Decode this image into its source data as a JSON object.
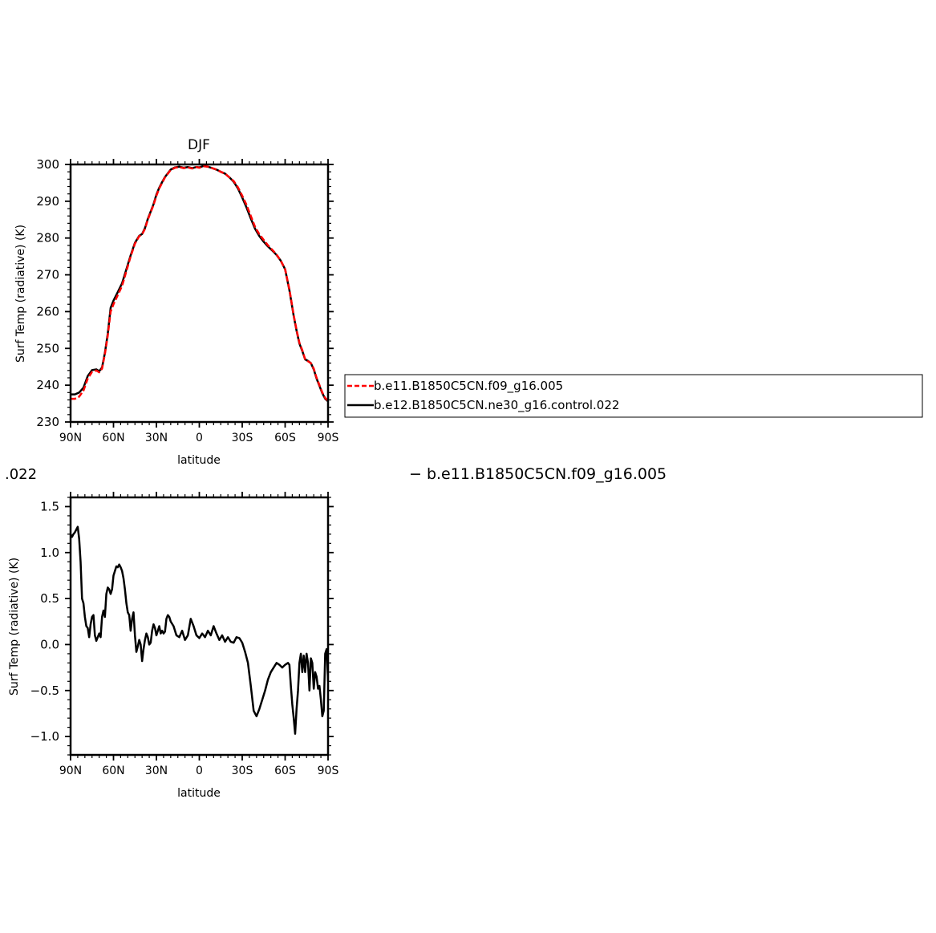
{
  "diff_fragment": ".022",
  "diff_subtitle": "− b.e11.B1850C5CN.f09_g16.005",
  "chart_data": [
    {
      "type": "line",
      "title": "DJF",
      "xlabel": "latitude",
      "ylabel": "Surf Temp (radiative) (K)",
      "xlim": [
        90,
        -90
      ],
      "ylim": [
        230,
        300
      ],
      "xtick_values": [
        90,
        60,
        30,
        0,
        -30,
        -60,
        -90
      ],
      "xtick_labels": [
        "90N",
        "60N",
        "30N",
        "0",
        "30S",
        "60S",
        "90S"
      ],
      "ytick_values": [
        230,
        240,
        250,
        260,
        270,
        280,
        290,
        300
      ],
      "ytick_labels": [
        "230",
        "240",
        "250",
        "260",
        "270",
        "280",
        "290",
        "300"
      ],
      "legend_position": "right",
      "series": [
        {
          "name": "b.e11.B1850C5CN.f09_g16.005",
          "color": "#ff0000",
          "dash": "dashed",
          "x": [
            90,
            87,
            84,
            81,
            78,
            75,
            72,
            70,
            68,
            66,
            64,
            62,
            60,
            57,
            54,
            51,
            48,
            45,
            42,
            40,
            38,
            36,
            34,
            32,
            30,
            28,
            26,
            24,
            22,
            20,
            17,
            14,
            11,
            8,
            5,
            2,
            0,
            -3,
            -6,
            -9,
            -12,
            -15,
            -18,
            -21,
            -24,
            -27,
            -30,
            -33,
            -36,
            -39,
            -42,
            -45,
            -48,
            -51,
            -54,
            -57,
            -60,
            -63,
            -66,
            -68,
            -70,
            -72,
            -74,
            -76,
            -78,
            -80,
            -82,
            -84,
            -86,
            -88,
            -90
          ],
          "y": [
            236.3,
            236.3,
            236.9,
            238.5,
            241.8,
            243.6,
            244.0,
            243.5,
            244.5,
            248.5,
            253.5,
            260.0,
            262.0,
            264.5,
            267.0,
            271.0,
            275.0,
            278.5,
            280.5,
            281.0,
            282.5,
            285.0,
            287.0,
            289.0,
            291.5,
            293.5,
            295.0,
            296.5,
            297.5,
            298.5,
            299.1,
            299.3,
            299.0,
            299.2,
            298.9,
            299.3,
            299.1,
            299.5,
            299.4,
            299.0,
            298.6,
            298.0,
            297.5,
            296.5,
            295.5,
            293.8,
            291.5,
            289.0,
            286.0,
            283.0,
            281.0,
            279.5,
            278.0,
            276.8,
            275.5,
            273.8,
            271.5,
            266.0,
            259.0,
            255.0,
            251.5,
            249.5,
            247.0,
            246.5,
            246.0,
            244.5,
            242.0,
            240.0,
            238.0,
            236.5,
            235.8
          ]
        },
        {
          "name": "b.e12.B1850C5CN.ne30_g16.control.022",
          "color": "#000000",
          "dash": "solid",
          "x": [
            90,
            87,
            84,
            81,
            78,
            75,
            72,
            70,
            68,
            66,
            64,
            62,
            60,
            57,
            54,
            51,
            48,
            45,
            42,
            40,
            38,
            36,
            34,
            32,
            30,
            28,
            26,
            24,
            22,
            20,
            17,
            14,
            11,
            8,
            5,
            2,
            0,
            -3,
            -6,
            -9,
            -12,
            -15,
            -18,
            -21,
            -24,
            -27,
            -30,
            -33,
            -36,
            -39,
            -42,
            -45,
            -48,
            -51,
            -54,
            -57,
            -60,
            -63,
            -66,
            -68,
            -70,
            -72,
            -74,
            -76,
            -78,
            -80,
            -82,
            -84,
            -86,
            -88,
            -90
          ],
          "y": [
            237.5,
            237.5,
            238.0,
            239.3,
            242.5,
            244.1,
            244.3,
            243.8,
            244.8,
            248.8,
            254.0,
            261.0,
            263.0,
            265.3,
            267.7,
            271.5,
            275.3,
            278.7,
            280.6,
            281.1,
            282.7,
            285.2,
            287.2,
            289.2,
            291.8,
            293.7,
            295.2,
            296.6,
            297.6,
            298.6,
            299.2,
            299.4,
            299.1,
            299.3,
            299.0,
            299.3,
            299.2,
            299.6,
            299.4,
            299.0,
            298.6,
            298.0,
            297.5,
            296.5,
            295.3,
            293.5,
            291.0,
            288.3,
            285.3,
            282.5,
            280.5,
            279.0,
            277.7,
            276.6,
            275.4,
            273.8,
            271.5,
            265.8,
            258.8,
            254.8,
            251.3,
            249.3,
            247.0,
            246.6,
            246.0,
            244.3,
            241.8,
            239.8,
            237.8,
            236.3,
            235.6
          ]
        }
      ]
    },
    {
      "type": "line",
      "title": "",
      "xlabel": "latitude",
      "ylabel": "Surf Temp (radiative) (K)",
      "xlim": [
        90,
        -90
      ],
      "ylim": [
        -1.2,
        1.6
      ],
      "xtick_values": [
        90,
        60,
        30,
        0,
        -30,
        -60,
        -90
      ],
      "xtick_labels": [
        "90N",
        "60N",
        "30N",
        "0",
        "30S",
        "60S",
        "90S"
      ],
      "ytick_values": [
        1.5,
        1.0,
        0.5,
        0.0,
        -0.5,
        -1.0
      ],
      "ytick_labels": [
        "1.5",
        "1.0",
        "0.5",
        "0.0",
        "−0.5",
        "−1.0"
      ],
      "series": [
        {
          "color": "#000000",
          "dash": "solid",
          "x": [
            90,
            89,
            88,
            87,
            86,
            85,
            84,
            83,
            82,
            81,
            80,
            79,
            78,
            77,
            76,
            75,
            74,
            73,
            72,
            71,
            70,
            69,
            68,
            67,
            66,
            65,
            64,
            63,
            62,
            61,
            60,
            59,
            58,
            57,
            56,
            55,
            54,
            53,
            52,
            51,
            50,
            49,
            48,
            47,
            46,
            45,
            44,
            43,
            42,
            41,
            40,
            39,
            38,
            37,
            36,
            35,
            34,
            33,
            32,
            31,
            30,
            29,
            28,
            27,
            26,
            25,
            24,
            23,
            22,
            21,
            20,
            18,
            16,
            14,
            12,
            10,
            8,
            6,
            4,
            2,
            0,
            -2,
            -4,
            -6,
            -8,
            -10,
            -12,
            -14,
            -16,
            -18,
            -20,
            -22,
            -24,
            -26,
            -28,
            -30,
            -32,
            -34,
            -36,
            -38,
            -40,
            -42,
            -44,
            -46,
            -48,
            -50,
            -52,
            -54,
            -56,
            -58,
            -60,
            -62,
            -63,
            -64,
            -65,
            -66,
            -67,
            -68,
            -69,
            -70,
            -71,
            -72,
            -73,
            -74,
            -75,
            -76,
            -77,
            -78,
            -79,
            -80,
            -81,
            -82,
            -83,
            -84,
            -85,
            -86,
            -87,
            -88,
            -89,
            -90
          ],
          "y": [
            1.2,
            1.17,
            1.2,
            1.22,
            1.25,
            1.28,
            1.15,
            0.9,
            0.5,
            0.45,
            0.3,
            0.2,
            0.18,
            0.08,
            0.22,
            0.3,
            0.32,
            0.1,
            0.04,
            0.08,
            0.12,
            0.08,
            0.3,
            0.37,
            0.3,
            0.55,
            0.62,
            0.6,
            0.55,
            0.6,
            0.75,
            0.8,
            0.85,
            0.84,
            0.87,
            0.84,
            0.8,
            0.72,
            0.6,
            0.45,
            0.35,
            0.32,
            0.15,
            0.28,
            0.35,
            0.1,
            -0.08,
            -0.02,
            0.05,
            0.0,
            -0.18,
            -0.05,
            0.05,
            0.12,
            0.08,
            0.0,
            0.02,
            0.15,
            0.22,
            0.18,
            0.1,
            0.15,
            0.2,
            0.12,
            0.15,
            0.12,
            0.14,
            0.28,
            0.32,
            0.3,
            0.25,
            0.2,
            0.1,
            0.08,
            0.15,
            0.05,
            0.1,
            0.28,
            0.2,
            0.1,
            0.07,
            0.12,
            0.08,
            0.15,
            0.1,
            0.2,
            0.12,
            0.05,
            0.1,
            0.03,
            0.08,
            0.03,
            0.02,
            0.08,
            0.07,
            0.02,
            -0.08,
            -0.2,
            -0.45,
            -0.72,
            -0.78,
            -0.7,
            -0.6,
            -0.5,
            -0.38,
            -0.3,
            -0.25,
            -0.2,
            -0.22,
            -0.25,
            -0.22,
            -0.2,
            -0.22,
            -0.45,
            -0.65,
            -0.8,
            -0.97,
            -0.7,
            -0.5,
            -0.2,
            -0.1,
            -0.3,
            -0.12,
            -0.3,
            -0.1,
            -0.2,
            -0.5,
            -0.15,
            -0.2,
            -0.48,
            -0.3,
            -0.35,
            -0.48,
            -0.45,
            -0.6,
            -0.78,
            -0.72,
            -0.1,
            -0.05,
            -0.4
          ]
        }
      ]
    }
  ],
  "legend": {
    "entries": [
      "b.e11.B1850C5CN.f09_g16.005",
      "b.e12.B1850C5CN.ne30_g16.control.022"
    ]
  }
}
